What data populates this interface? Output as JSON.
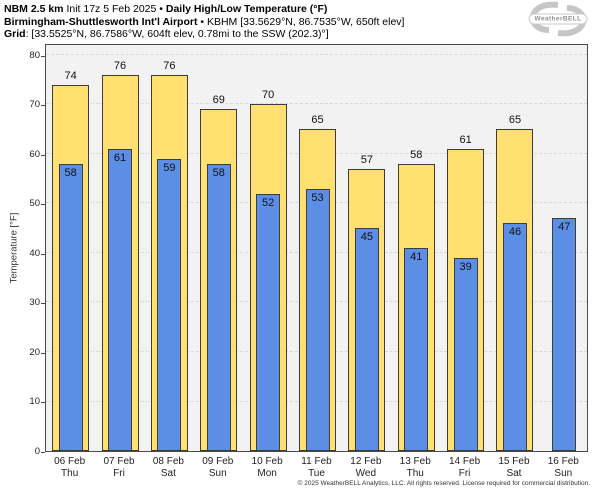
{
  "header": {
    "model": "NBM 2.5 km",
    "init": " Init 17z 5 Feb 2025 ",
    "bullet1": "•",
    "product": " Daily High/Low Temperature (°F)",
    "station_name": "Birmingham-Shuttlesworth Int'l Airport",
    "bullet2": " • ",
    "station_details": "KBHM [33.5629°N, 86.7535°W, 650ft elev]",
    "grid_label": "Grid",
    "grid_details": ": [33.5525°N, 86.7586°W, 604ft elev, 0.78mi to the SSW (202.3)°]"
  },
  "logo": {
    "name": "WeatherBELL"
  },
  "chart_data": {
    "type": "bar",
    "title": "Daily High/Low Temperature (°F)",
    "xlabel": "",
    "ylabel": "Temperature [°F]",
    "ylim": [
      0,
      82.4
    ],
    "yticks": [
      0,
      10,
      20,
      30,
      40,
      50,
      60,
      70,
      80
    ],
    "grid": "horizontal-dashed",
    "legend_position": "none",
    "plot_background": "#f2f2f2",
    "categories": [
      {
        "date": "06 Feb",
        "day": "Thu"
      },
      {
        "date": "07 Feb",
        "day": "Fri"
      },
      {
        "date": "08 Feb",
        "day": "Sat"
      },
      {
        "date": "09 Feb",
        "day": "Sun"
      },
      {
        "date": "10 Feb",
        "day": "Mon"
      },
      {
        "date": "11 Feb",
        "day": "Tue"
      },
      {
        "date": "12 Feb",
        "day": "Wed"
      },
      {
        "date": "13 Feb",
        "day": "Thu"
      },
      {
        "date": "14 Feb",
        "day": "Fri"
      },
      {
        "date": "15 Feb",
        "day": "Sat"
      },
      {
        "date": "16 Feb",
        "day": "Sun"
      }
    ],
    "series": [
      {
        "name": "Daily High",
        "color": "#ffe070",
        "values": [
          74,
          76,
          76,
          69,
          70,
          65,
          57,
          58,
          61,
          65,
          null
        ]
      },
      {
        "name": "Daily Low",
        "color": "#5c8ee6",
        "values": [
          58,
          61,
          59,
          58,
          52,
          53,
          45,
          41,
          39,
          46,
          47
        ]
      }
    ]
  },
  "footer": {
    "copyright": "© 2025 WeatherBELL Analytics, LLC. All rights reserved. License required for commercial distribution."
  }
}
